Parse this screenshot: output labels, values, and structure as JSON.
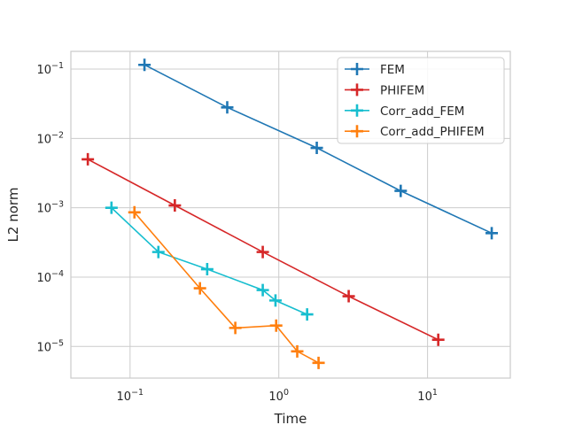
{
  "chart_data": {
    "type": "line",
    "xlabel": "Time",
    "ylabel": "L2 norm",
    "xscale": "log",
    "yscale": "log",
    "xlim": [
      0.04,
      36
    ],
    "ylim": [
      3.5e-06,
      0.18
    ],
    "grid": true,
    "legend_position": "upper right",
    "x_ticks": [
      {
        "value": 0.1,
        "base": "10",
        "exp": "−1"
      },
      {
        "value": 1,
        "base": "10",
        "exp": "0"
      },
      {
        "value": 10,
        "base": "10",
        "exp": "1"
      }
    ],
    "y_ticks": [
      {
        "value": 0.1,
        "base": "10",
        "exp": "−1"
      },
      {
        "value": 0.01,
        "base": "10",
        "exp": "−2"
      },
      {
        "value": 0.001,
        "base": "10",
        "exp": "−3"
      },
      {
        "value": 0.0001,
        "base": "10",
        "exp": "−4"
      },
      {
        "value": 1e-05,
        "base": "10",
        "exp": "−5"
      }
    ],
    "series": [
      {
        "name": "FEM",
        "color": "#1f77b4",
        "x": [
          0.125,
          0.45,
          1.8,
          6.6,
          27
        ],
        "y": [
          0.115,
          0.028,
          0.0073,
          0.00175,
          0.00043
        ]
      },
      {
        "name": "PHIFEM",
        "color": "#d62728",
        "x": [
          0.052,
          0.2,
          0.78,
          2.95,
          11.8
        ],
        "y": [
          0.005,
          0.00108,
          0.00023,
          5.3e-05,
          1.25e-05
        ]
      },
      {
        "name": "Corr_add_FEM",
        "color": "#17becf",
        "x": [
          0.075,
          0.155,
          0.33,
          0.78,
          0.95,
          1.55
        ],
        "y": [
          0.001,
          0.00023,
          0.00013,
          6.5e-05,
          4.6e-05,
          2.9e-05
        ]
      },
      {
        "name": "Corr_add_PHIFEM",
        "color": "#ff7f0e",
        "x": [
          0.107,
          0.295,
          0.51,
          0.96,
          1.33,
          1.85
        ],
        "y": [
          0.00086,
          6.9e-05,
          1.85e-05,
          2e-05,
          8.5e-06,
          5.8e-06
        ]
      }
    ]
  }
}
